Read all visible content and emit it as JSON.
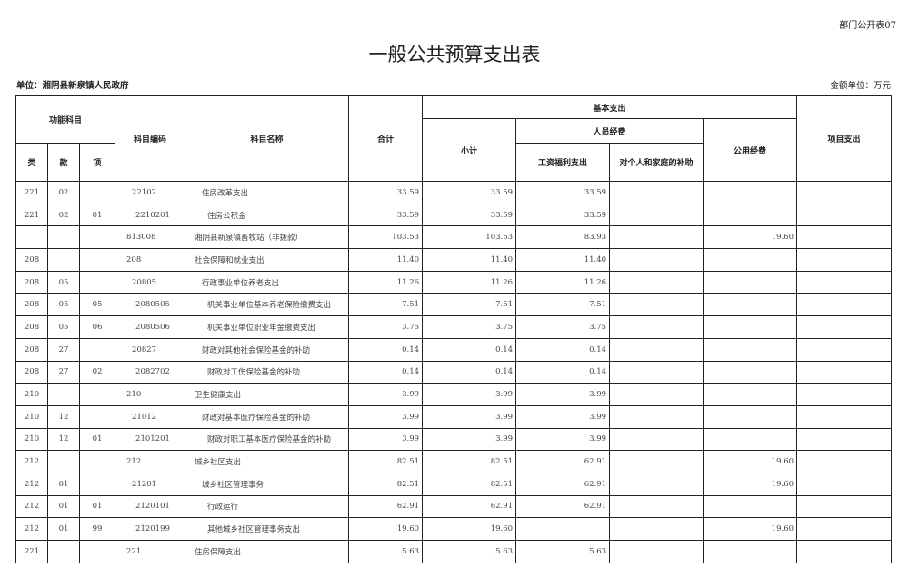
{
  "form_no": "部门公开表07",
  "title": "一般公共预算支出表",
  "unit": "单位：湘阴县新泉镇人民政府",
  "amount_unit": "金额单位：万元",
  "headers": {
    "function_subject": "功能科目",
    "lei": "类",
    "kuan": "款",
    "xiang": "项",
    "code": "科目编码",
    "name": "科目名称",
    "total": "合计",
    "basic": "基本支出",
    "subtotal": "小计",
    "personnel": "人员经费",
    "wages": "工资福利支出",
    "subsidy": "对个人和家庭的补助",
    "public": "公用经费",
    "project": "项目支出"
  },
  "rows": [
    {
      "lei": "221",
      "kuan": "02",
      "xiang": "",
      "code": "22102",
      "name": "住房改革支出",
      "total": "33.59",
      "subtotal": "33.59",
      "wages": "33.59",
      "subsidy": "",
      "public": "",
      "project": "",
      "level": 2
    },
    {
      "lei": "221",
      "kuan": "02",
      "xiang": "01",
      "code": "2210201",
      "name": "住房公积金",
      "total": "33.59",
      "subtotal": "33.59",
      "wages": "33.59",
      "subsidy": "",
      "public": "",
      "project": "",
      "level": 3
    },
    {
      "lei": "",
      "kuan": "",
      "xiang": "",
      "code": "813008",
      "name": "湘阴县新泉镇畜牧站（非拨款）",
      "total": "103.53",
      "subtotal": "103.53",
      "wages": "83.93",
      "subsidy": "",
      "public": "19.60",
      "project": "",
      "level": 0
    },
    {
      "lei": "208",
      "kuan": "",
      "xiang": "",
      "code": "208",
      "name": "社会保障和就业支出",
      "total": "11.40",
      "subtotal": "11.40",
      "wages": "11.40",
      "subsidy": "",
      "public": "",
      "project": "",
      "level": 1
    },
    {
      "lei": "208",
      "kuan": "05",
      "xiang": "",
      "code": "20805",
      "name": "行政事业单位养老支出",
      "total": "11.26",
      "subtotal": "11.26",
      "wages": "11.26",
      "subsidy": "",
      "public": "",
      "project": "",
      "level": 2
    },
    {
      "lei": "208",
      "kuan": "05",
      "xiang": "05",
      "code": "2080505",
      "name": "机关事业单位基本养老保险缴费支出",
      "total": "7.51",
      "subtotal": "7.51",
      "wages": "7.51",
      "subsidy": "",
      "public": "",
      "project": "",
      "level": 3
    },
    {
      "lei": "208",
      "kuan": "05",
      "xiang": "06",
      "code": "2080506",
      "name": "机关事业单位职业年金缴费支出",
      "total": "3.75",
      "subtotal": "3.75",
      "wages": "3.75",
      "subsidy": "",
      "public": "",
      "project": "",
      "level": 3
    },
    {
      "lei": "208",
      "kuan": "27",
      "xiang": "",
      "code": "20827",
      "name": "财政对其他社会保险基金的补助",
      "total": "0.14",
      "subtotal": "0.14",
      "wages": "0.14",
      "subsidy": "",
      "public": "",
      "project": "",
      "level": 2
    },
    {
      "lei": "208",
      "kuan": "27",
      "xiang": "02",
      "code": "2082702",
      "name": "财政对工伤保险基金的补助",
      "total": "0.14",
      "subtotal": "0.14",
      "wages": "0.14",
      "subsidy": "",
      "public": "",
      "project": "",
      "level": 3
    },
    {
      "lei": "210",
      "kuan": "",
      "xiang": "",
      "code": "210",
      "name": "卫生健康支出",
      "total": "3.99",
      "subtotal": "3.99",
      "wages": "3.99",
      "subsidy": "",
      "public": "",
      "project": "",
      "level": 1
    },
    {
      "lei": "210",
      "kuan": "12",
      "xiang": "",
      "code": "21012",
      "name": "财政对基本医疗保险基金的补助",
      "total": "3.99",
      "subtotal": "3.99",
      "wages": "3.99",
      "subsidy": "",
      "public": "",
      "project": "",
      "level": 2
    },
    {
      "lei": "210",
      "kuan": "12",
      "xiang": "01",
      "code": "2101201",
      "name": "财政对职工基本医疗保险基金的补助",
      "total": "3.99",
      "subtotal": "3.99",
      "wages": "3.99",
      "subsidy": "",
      "public": "",
      "project": "",
      "level": 3
    },
    {
      "lei": "212",
      "kuan": "",
      "xiang": "",
      "code": "212",
      "name": "城乡社区支出",
      "total": "82.51",
      "subtotal": "82.51",
      "wages": "62.91",
      "subsidy": "",
      "public": "19.60",
      "project": "",
      "level": 1
    },
    {
      "lei": "212",
      "kuan": "01",
      "xiang": "",
      "code": "21201",
      "name": "城乡社区管理事务",
      "total": "82.51",
      "subtotal": "82.51",
      "wages": "62.91",
      "subsidy": "",
      "public": "19.60",
      "project": "",
      "level": 2
    },
    {
      "lei": "212",
      "kuan": "01",
      "xiang": "01",
      "code": "2120101",
      "name": "行政运行",
      "total": "62.91",
      "subtotal": "62.91",
      "wages": "62.91",
      "subsidy": "",
      "public": "",
      "project": "",
      "level": 3
    },
    {
      "lei": "212",
      "kuan": "01",
      "xiang": "99",
      "code": "2120199",
      "name": "其他城乡社区管理事务支出",
      "total": "19.60",
      "subtotal": "19.60",
      "wages": "",
      "subsidy": "",
      "public": "19.60",
      "project": "",
      "level": 3
    },
    {
      "lei": "221",
      "kuan": "",
      "xiang": "",
      "code": "221",
      "name": "住房保障支出",
      "total": "5.63",
      "subtotal": "5.63",
      "wages": "5.63",
      "subsidy": "",
      "public": "",
      "project": "",
      "level": 1
    }
  ]
}
